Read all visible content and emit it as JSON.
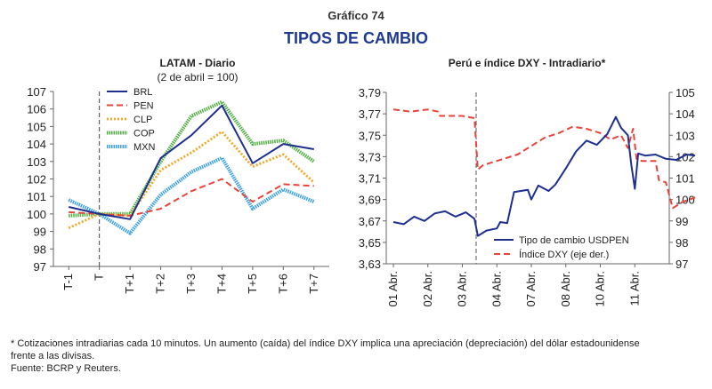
{
  "header": {
    "label": "Gráfico 74",
    "title": "TIPOS DE CAMBIO"
  },
  "chart_data": [
    {
      "type": "line",
      "title": "LATAM - Diario",
      "subtitle": "(2 de abril = 100)",
      "categories": [
        "T-1",
        "T",
        "T+1",
        "T+2",
        "T+3",
        "T+4",
        "T+5",
        "T+6",
        "T+7"
      ],
      "ylim": [
        97,
        107
      ],
      "yticks": [
        97,
        98,
        99,
        100,
        101,
        102,
        103,
        104,
        105,
        106,
        107
      ],
      "marker_line_at": "T",
      "legend_position": "top-left",
      "series": [
        {
          "name": "BRL",
          "color": "#1f2f8f",
          "style": "solid",
          "values": [
            100.4,
            100.0,
            99.7,
            103.2,
            104.5,
            106.2,
            102.9,
            104.0,
            103.7
          ]
        },
        {
          "name": "PEN",
          "color": "#e8443a",
          "style": "dashed",
          "values": [
            100.1,
            100.0,
            99.9,
            100.3,
            101.3,
            102.0,
            100.7,
            101.7,
            101.6
          ]
        },
        {
          "name": "CLP",
          "color": "#f5a623",
          "style": "dotted",
          "values": [
            99.2,
            100.0,
            99.9,
            102.5,
            103.5,
            104.7,
            102.7,
            103.4,
            101.8
          ]
        },
        {
          "name": "COP",
          "color": "#52b043",
          "style": "thick",
          "values": [
            99.9,
            100.0,
            100.0,
            103.0,
            105.6,
            106.4,
            104.0,
            104.2,
            103.0
          ]
        },
        {
          "name": "MXN",
          "color": "#3aa0e8",
          "style": "thick",
          "values": [
            100.8,
            100.0,
            98.9,
            101.1,
            102.4,
            103.2,
            100.3,
            101.4,
            100.7
          ]
        }
      ]
    },
    {
      "type": "line",
      "title": "Perú e índice DXY - Intradiario*",
      "categories": [
        "01 Abr.",
        "02 Abr.",
        "03 Abr.",
        "04 Abr.",
        "07 Abr.",
        "08 Abr.",
        "10 Abr.",
        "11 Abr."
      ],
      "y_left": {
        "ylim": [
          3.63,
          3.79
        ],
        "ticks": [
          "3,63",
          "3,65",
          "3,67",
          "3,69",
          "3,71",
          "3,73",
          "3,75",
          "3,77",
          "3,79"
        ]
      },
      "y_right": {
        "ylim": [
          97,
          105
        ],
        "ticks": [
          97,
          98,
          99,
          100,
          101,
          102,
          103,
          104,
          105
        ]
      },
      "marker_line_at": 2.4,
      "legend_position": "bottom-right",
      "series": [
        {
          "name": "Tipo de cambio USDPEN",
          "axis": "left",
          "color": "#1f2f8f",
          "style": "solid",
          "points": [
            [
              0.0,
              3.669
            ],
            [
              0.3,
              3.667
            ],
            [
              0.6,
              3.674
            ],
            [
              0.9,
              3.67
            ],
            [
              1.2,
              3.677
            ],
            [
              1.5,
              3.679
            ],
            [
              1.8,
              3.674
            ],
            [
              2.1,
              3.678
            ],
            [
              2.35,
              3.672
            ],
            [
              2.45,
              3.656
            ],
            [
              2.7,
              3.661
            ],
            [
              3.0,
              3.663
            ],
            [
              3.1,
              3.669
            ],
            [
              3.3,
              3.668
            ],
            [
              3.5,
              3.697
            ],
            [
              3.9,
              3.699
            ],
            [
              4.0,
              3.69
            ],
            [
              4.2,
              3.703
            ],
            [
              4.5,
              3.698
            ],
            [
              4.7,
              3.704
            ],
            [
              5.0,
              3.719
            ],
            [
              5.3,
              3.735
            ],
            [
              5.6,
              3.745
            ],
            [
              5.9,
              3.741
            ],
            [
              6.2,
              3.751
            ],
            [
              6.45,
              3.767
            ],
            [
              6.6,
              3.757
            ],
            [
              6.8,
              3.75
            ],
            [
              6.9,
              3.722
            ],
            [
              7.0,
              3.7
            ],
            [
              7.1,
              3.733
            ],
            [
              7.3,
              3.731
            ],
            [
              7.6,
              3.732
            ],
            [
              7.9,
              3.728
            ],
            [
              8.2,
              3.727
            ],
            [
              8.5,
              3.732
            ],
            [
              8.75,
              3.731
            ]
          ]
        },
        {
          "name": "Índice DXY (eje der.)",
          "axis": "right",
          "color": "#e8443a",
          "style": "dashed",
          "points": [
            [
              0.0,
              104.2
            ],
            [
              0.5,
              104.1
            ],
            [
              1.0,
              104.2
            ],
            [
              1.3,
              104.1
            ],
            [
              1.35,
              103.9
            ],
            [
              2.0,
              103.9
            ],
            [
              2.35,
              103.8
            ],
            [
              2.45,
              101.4
            ],
            [
              2.6,
              101.6
            ],
            [
              2.8,
              101.7
            ],
            [
              3.2,
              101.9
            ],
            [
              3.6,
              102.1
            ],
            [
              4.0,
              102.5
            ],
            [
              4.4,
              102.9
            ],
            [
              4.8,
              103.1
            ],
            [
              5.2,
              103.4
            ],
            [
              5.6,
              103.3
            ],
            [
              6.0,
              103.1
            ],
            [
              6.3,
              102.8
            ],
            [
              6.6,
              103.0
            ],
            [
              6.8,
              102.4
            ],
            [
              6.95,
              103.3
            ],
            [
              7.05,
              101.9
            ],
            [
              7.2,
              101.8
            ],
            [
              7.6,
              101.8
            ],
            [
              7.7,
              100.9
            ],
            [
              7.9,
              100.8
            ],
            [
              8.1,
              99.6
            ],
            [
              8.4,
              99.9
            ],
            [
              8.6,
              100.0
            ],
            [
              8.75,
              100.1
            ]
          ]
        }
      ]
    }
  ],
  "footer": {
    "note_line1": "* Cotizaciones intradiarias cada 10 minutos. Un aumento (caída) del índice DXY implica una apreciación (depreciación) del dólar estadounidense",
    "note_line2": "frente a las divisas.",
    "source": "Fuente: BCRP y Reuters."
  }
}
